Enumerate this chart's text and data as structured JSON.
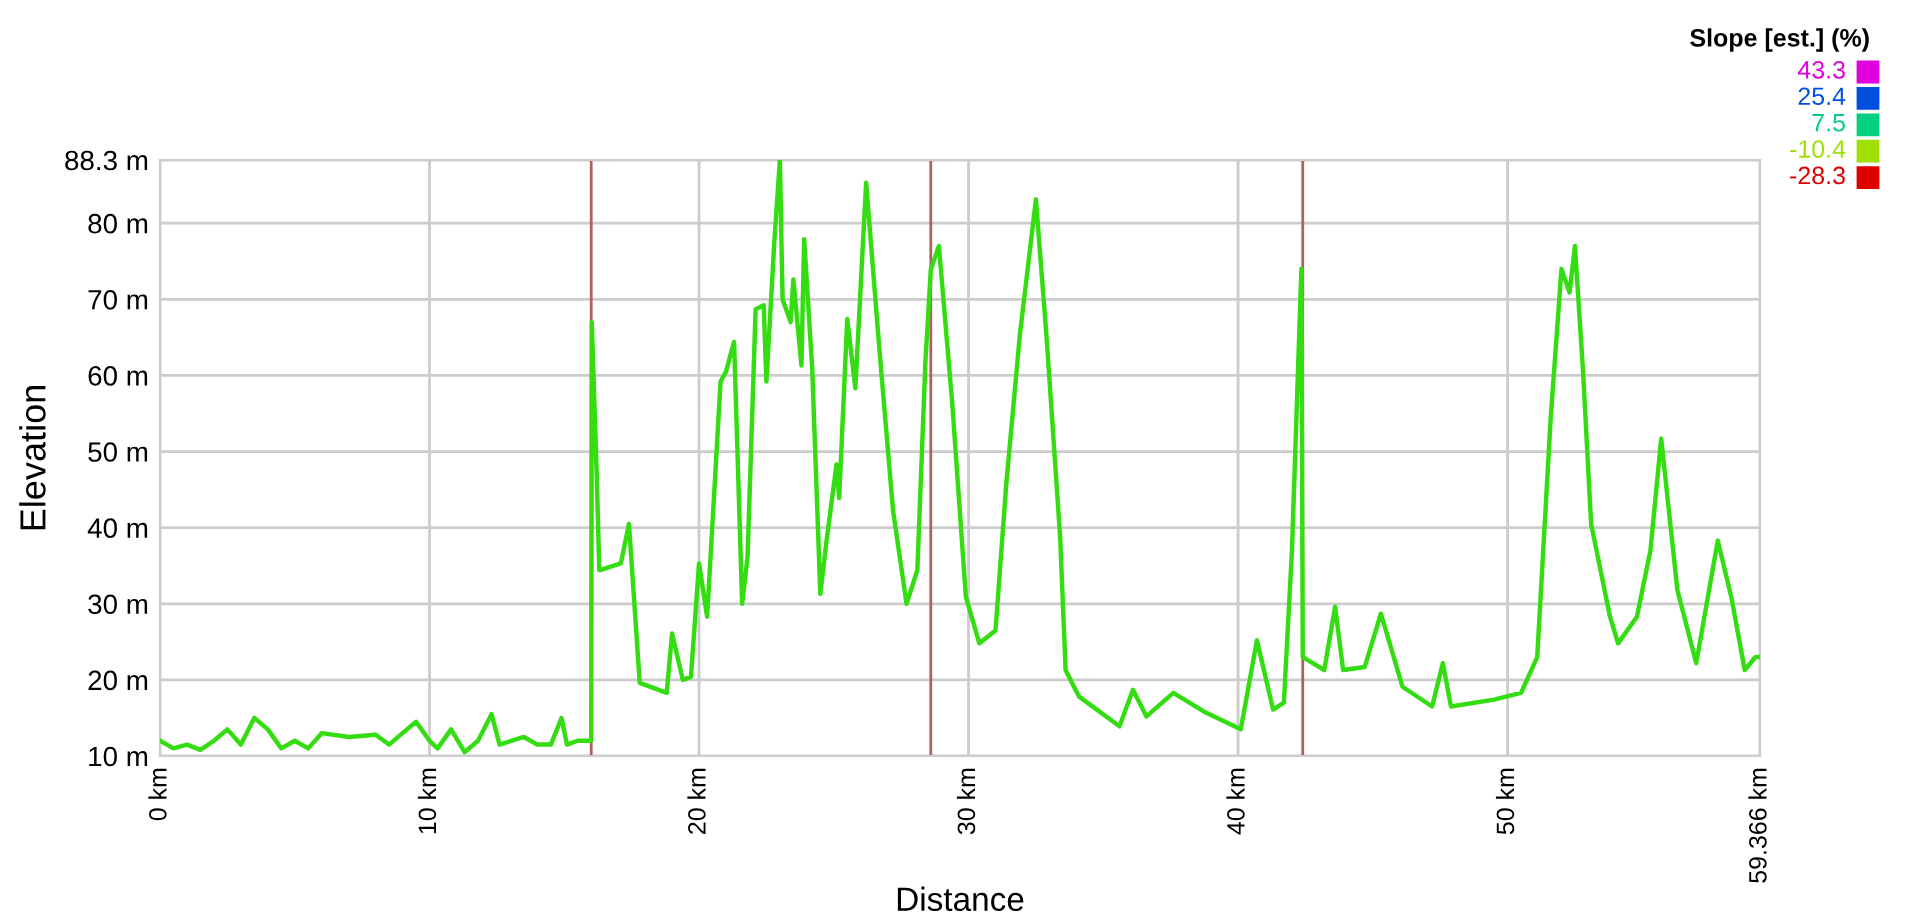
{
  "chart_data": {
    "type": "line",
    "xlabel": "Distance",
    "ylabel": "Elevation",
    "x": [
      0,
      0.5,
      1,
      1.5,
      2,
      2.5,
      3,
      3.5,
      4,
      4.5,
      5,
      5.5,
      6,
      7,
      8,
      8.5,
      9,
      9.5,
      10,
      10.3,
      10.8,
      11.3,
      11.8,
      12.3,
      12.6,
      13.5,
      14,
      14.5,
      14.9,
      15.1,
      15.5,
      16.0,
      16.02,
      16.2,
      16.3,
      17.1,
      17.4,
      17.8,
      18.8,
      19.0,
      19.4,
      19.7,
      20.0,
      20.3,
      20.8,
      21.0,
      21.3,
      21.6,
      21.8,
      22.1,
      22.4,
      22.5,
      22.8,
      23.0,
      23.1,
      23.4,
      23.5,
      23.8,
      23.9,
      24.2,
      24.5,
      24.7,
      25.1,
      25.2,
      25.5,
      25.8,
      26.2,
      26.7,
      27.2,
      27.7,
      28.1,
      28.4,
      28.6,
      28.9,
      29.4,
      29.9,
      30.4,
      31.0,
      31.4,
      31.9,
      32.5,
      32.9,
      33.4,
      33.6,
      34.1,
      35.6,
      36.1,
      36.6,
      37.6,
      38.8,
      40.1,
      40.7,
      41.3,
      41.7,
      42.0,
      42.35,
      42.4,
      43.2,
      43.6,
      43.9,
      44.7,
      45.3,
      46.1,
      47.2,
      47.6,
      47.9,
      49.5,
      50.5,
      51.1,
      51.6,
      52.0,
      52.3,
      52.5,
      52.8,
      53.1,
      53.8,
      54.1,
      54.8,
      55.3,
      55.7,
      56.3,
      57.0,
      57.8,
      58.3,
      58.8,
      59.2,
      59.366
    ],
    "series": [
      {
        "color": "#33dd11",
        "values": [
          12,
          11,
          11.5,
          10.8,
          12,
          13.5,
          11.5,
          15,
          13.5,
          11,
          12,
          11,
          13,
          12.5,
          12.8,
          11.5,
          13,
          14.5,
          12,
          11,
          13.5,
          10.5,
          12,
          15.5,
          11.5,
          12.5,
          11.5,
          11.5,
          15,
          11.5,
          12,
          12,
          67,
          47.4,
          34.4,
          35.3,
          40.5,
          19.6,
          18.3,
          26.1,
          20.0,
          20.4,
          35.3,
          28.3,
          59.2,
          60.5,
          64.4,
          30.0,
          36.1,
          68.7,
          69.2,
          59.2,
          77.9,
          88.3,
          70.0,
          67.0,
          72.6,
          61.3,
          77.9,
          60.9,
          31.3,
          37.4,
          48.3,
          43.9,
          67.4,
          58.3,
          85.3,
          63.1,
          42.2,
          30.0,
          34.4,
          61.8,
          73.9,
          77.0,
          56.1,
          30.9,
          24.8,
          26.5,
          45.7,
          65.2,
          83.1,
          64.8,
          38.7,
          21.3,
          17.8,
          13.9,
          18.7,
          15.2,
          18.3,
          15.7,
          13.5,
          25.2,
          16.1,
          17.0,
          37.0,
          74.0,
          23.0,
          21.3,
          29.6,
          21.3,
          21.7,
          28.7,
          19.1,
          16.5,
          22.2,
          16.5,
          17.4,
          18.3,
          23.0,
          54.4,
          74.0,
          70.9,
          77.0,
          60.5,
          40.5,
          28.3,
          24.8,
          28.3,
          37.0,
          51.7,
          31.8,
          22.2,
          38.3,
          30.9,
          21.3,
          23.0,
          23.0
        ]
      }
    ],
    "xlim": [
      0,
      59.366
    ],
    "xticks": [
      {
        "value": 0,
        "label": "0 km"
      },
      {
        "value": 10,
        "label": "10 km"
      },
      {
        "value": 20,
        "label": "20 km"
      },
      {
        "value": 30,
        "label": "30 km"
      },
      {
        "value": 40,
        "label": "40 km"
      },
      {
        "value": 50,
        "label": "50 km"
      },
      {
        "value": 59.366,
        "label": "59.366 km"
      }
    ],
    "ylim": [
      10,
      88.3
    ],
    "yticks": [
      {
        "value": 10,
        "label": "10 m"
      },
      {
        "value": 20,
        "label": "20 m"
      },
      {
        "value": 30,
        "label": "30 m"
      },
      {
        "value": 40,
        "label": "40 m"
      },
      {
        "value": 50,
        "label": "50 m"
      },
      {
        "value": 60,
        "label": "60 m"
      },
      {
        "value": 70,
        "label": "70 m"
      },
      {
        "value": 80,
        "label": "80 m"
      },
      {
        "value": 88.3,
        "label": "88.3 m"
      }
    ],
    "ref_lines": [
      {
        "axis": "x",
        "value": 16.0,
        "color": "#b06060"
      },
      {
        "axis": "x",
        "value": 28.6,
        "color": "#b06060"
      },
      {
        "axis": "x",
        "value": 42.4,
        "color": "#b06060"
      }
    ],
    "grid": true,
    "clabel": "Slope [est.] (%)",
    "cticks": [
      43.3,
      25.4,
      7.5,
      -10.4,
      -28.3
    ],
    "colors": [
      "#e000e0",
      "#0050e0",
      "#00d080",
      "#a0e000",
      "#e00000"
    ]
  }
}
